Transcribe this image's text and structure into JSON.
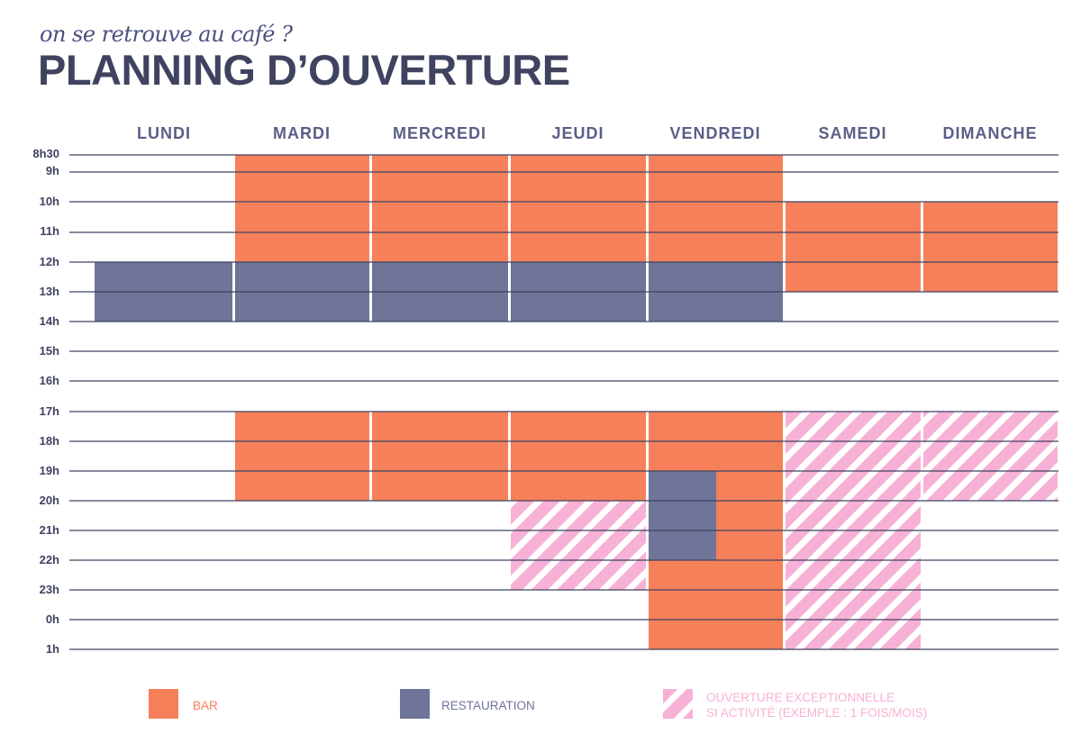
{
  "header": {
    "tagline": "on se retrouve au café ?",
    "title": "PLANNING D’OUVERTURE"
  },
  "colors": {
    "bar": "#f5805a",
    "restauration": "#6f7499",
    "exceptional": "#f7b1d6",
    "text_dark": "#3f4360",
    "day_label": "#5a5f87"
  },
  "days": [
    "LUNDI",
    "MARDI",
    "MERCREDI",
    "JEUDI",
    "VENDREDI",
    "SAMEDI",
    "DIMANCHE"
  ],
  "hours": [
    "8h30",
    "9h",
    "10h",
    "11h",
    "12h",
    "13h",
    "14h",
    "15h",
    "16h",
    "17h",
    "18h",
    "19h",
    "20h",
    "21h",
    "22h",
    "23h",
    "0h",
    "1h"
  ],
  "legend": {
    "bar": "BAR",
    "restauration": "RESTAURATION",
    "exceptional_line1": "OUVERTURE EXCEPTIONNELLE",
    "exceptional_line2": "SI ACTIVITÉ (EXEMPLE : 1 FOIS/MOIS)"
  },
  "slots": [
    {
      "type": "restauration",
      "day": 0,
      "start": 4,
      "end": 6
    },
    {
      "type": "bar",
      "day": 1,
      "start": 0,
      "end": 4
    },
    {
      "type": "restauration",
      "day": 1,
      "start": 4,
      "end": 6
    },
    {
      "type": "bar",
      "day": 1,
      "start": 9,
      "end": 12
    },
    {
      "type": "bar",
      "day": 2,
      "start": 0,
      "end": 4
    },
    {
      "type": "restauration",
      "day": 2,
      "start": 4,
      "end": 6
    },
    {
      "type": "bar",
      "day": 2,
      "start": 9,
      "end": 12
    },
    {
      "type": "bar",
      "day": 3,
      "start": 0,
      "end": 4
    },
    {
      "type": "restauration",
      "day": 3,
      "start": 4,
      "end": 6
    },
    {
      "type": "bar",
      "day": 3,
      "start": 9,
      "end": 12
    },
    {
      "type": "exceptional",
      "day": 3,
      "start": 12,
      "end": 15
    },
    {
      "type": "bar",
      "day": 4,
      "start": 0,
      "end": 4
    },
    {
      "type": "restauration",
      "day": 4,
      "start": 4,
      "end": 6
    },
    {
      "type": "bar",
      "day": 4,
      "start": 9,
      "end": 17
    },
    {
      "type": "restauration",
      "day": 4,
      "start": 11,
      "end": 14,
      "part": "left-half"
    },
    {
      "type": "bar",
      "day": 5,
      "start": 2,
      "end": 5
    },
    {
      "type": "exceptional",
      "day": 5,
      "start": 9,
      "end": 17
    },
    {
      "type": "bar",
      "day": 6,
      "start": 2,
      "end": 5
    },
    {
      "type": "exceptional",
      "day": 6,
      "start": 9,
      "end": 12
    }
  ]
}
